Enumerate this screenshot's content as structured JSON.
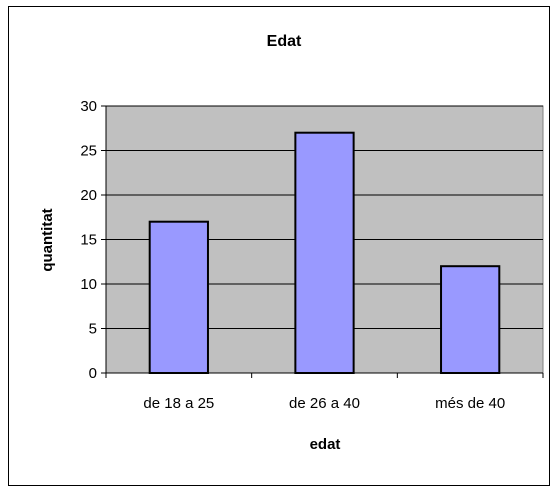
{
  "chart_data": {
    "type": "bar",
    "title": "Edat",
    "xlabel": "edat",
    "ylabel": "quantitat",
    "categories": [
      "de 18 a 25",
      "de 26 a 40",
      "més de 40"
    ],
    "values": [
      17,
      27,
      12
    ],
    "ylim": [
      0,
      30
    ],
    "yticks": [
      0,
      5,
      10,
      15,
      20,
      25,
      30
    ],
    "grid": true,
    "legend": "none",
    "colors": {
      "bar_fill": "#9999ff",
      "bar_stroke": "#000000",
      "plot_background": "#c0c0c0",
      "gridline": "#000000"
    }
  }
}
